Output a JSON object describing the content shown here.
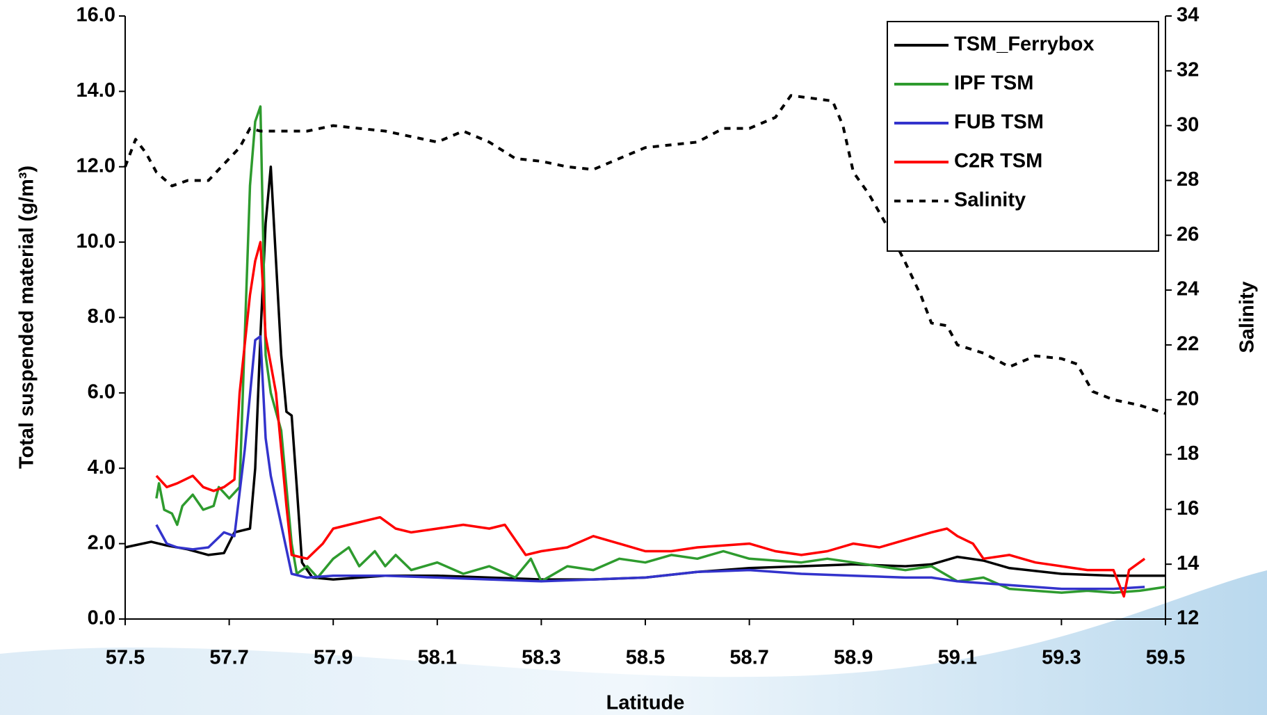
{
  "chart_data": {
    "type": "line",
    "y_label": "Total suspended material (g/m³)",
    "y2_label": "Salinity",
    "x_label": "Latitude",
    "xlim": [
      57.5,
      59.5
    ],
    "xticks": [
      57.5,
      57.7,
      57.9,
      58.1,
      58.3,
      58.5,
      58.7,
      58.9,
      59.1,
      59.3,
      59.5
    ],
    "ylim": [
      0,
      16
    ],
    "yticks": [
      {
        "value": 0,
        "label": "0.0"
      },
      {
        "value": 2,
        "label": "2.0"
      },
      {
        "value": 4,
        "label": "4.0"
      },
      {
        "value": 6,
        "label": "6.0"
      },
      {
        "value": 8,
        "label": "8.0"
      },
      {
        "value": 10,
        "label": "10.0"
      },
      {
        "value": 12,
        "label": "12.0"
      },
      {
        "value": 14,
        "label": "14.0"
      },
      {
        "value": 16,
        "label": "16.0"
      }
    ],
    "y2lim": [
      12,
      34
    ],
    "y2ticks": [
      12,
      14,
      16,
      18,
      20,
      22,
      24,
      26,
      28,
      30,
      32,
      34
    ],
    "legend": "upper right",
    "series": [
      {
        "name": "TSM_Ferrybox",
        "color": "#000000",
        "style": "solid",
        "x": [
          57.5,
          57.55,
          57.58,
          57.62,
          57.66,
          57.69,
          57.71,
          57.74,
          57.75,
          57.76,
          57.77,
          57.78,
          57.79,
          57.8,
          57.81,
          57.82,
          57.83,
          57.84,
          57.86,
          57.9,
          58.0,
          58.1,
          58.2,
          58.3,
          58.4,
          58.5,
          58.6,
          58.7,
          58.8,
          58.9,
          59.0,
          59.05,
          59.1,
          59.15,
          59.2,
          59.3,
          59.4,
          59.5
        ],
        "values": [
          1.9,
          2.05,
          1.95,
          1.85,
          1.7,
          1.75,
          2.3,
          2.4,
          4.0,
          7.5,
          10.5,
          12.0,
          9.5,
          7.0,
          5.5,
          5.4,
          3.5,
          1.5,
          1.1,
          1.05,
          1.15,
          1.15,
          1.1,
          1.05,
          1.05,
          1.1,
          1.25,
          1.35,
          1.4,
          1.45,
          1.4,
          1.45,
          1.65,
          1.55,
          1.35,
          1.2,
          1.15,
          1.15
        ]
      },
      {
        "name": "IPF TSM",
        "color": "#2e9b2e",
        "style": "solid",
        "x": [
          57.56,
          57.565,
          57.575,
          57.59,
          57.6,
          57.61,
          57.63,
          57.65,
          57.67,
          57.68,
          57.7,
          57.72,
          57.73,
          57.74,
          57.75,
          57.76,
          57.77,
          57.78,
          57.8,
          57.82,
          57.83,
          57.85,
          57.87,
          57.9,
          57.93,
          57.95,
          57.98,
          58.0,
          58.02,
          58.05,
          58.1,
          58.15,
          58.2,
          58.25,
          58.28,
          58.3,
          58.35,
          58.4,
          58.45,
          58.5,
          58.55,
          58.6,
          58.65,
          58.7,
          58.8,
          58.85,
          58.9,
          59.0,
          59.05,
          59.1,
          59.15,
          59.2,
          59.25,
          59.3,
          59.35,
          59.4,
          59.45,
          59.5
        ],
        "values": [
          3.2,
          3.6,
          2.9,
          2.8,
          2.5,
          3.0,
          3.3,
          2.9,
          3.0,
          3.5,
          3.2,
          3.5,
          7.5,
          11.5,
          13.2,
          13.6,
          7.0,
          6.0,
          5.0,
          2.0,
          1.2,
          1.4,
          1.1,
          1.6,
          1.9,
          1.4,
          1.8,
          1.4,
          1.7,
          1.3,
          1.5,
          1.2,
          1.4,
          1.1,
          1.6,
          1.0,
          1.4,
          1.3,
          1.6,
          1.5,
          1.7,
          1.6,
          1.8,
          1.6,
          1.5,
          1.6,
          1.5,
          1.3,
          1.4,
          1.0,
          1.1,
          0.8,
          0.75,
          0.7,
          0.75,
          0.7,
          0.75,
          0.85
        ]
      },
      {
        "name": "FUB TSM",
        "color": "#3333cc",
        "style": "solid",
        "x": [
          57.56,
          57.58,
          57.6,
          57.63,
          57.66,
          57.69,
          57.71,
          57.73,
          57.75,
          57.76,
          57.77,
          57.78,
          57.8,
          57.82,
          57.85,
          57.9,
          58.0,
          58.1,
          58.2,
          58.3,
          58.4,
          58.5,
          58.6,
          58.7,
          58.8,
          58.9,
          59.0,
          59.05,
          59.1,
          59.2,
          59.3,
          59.4,
          59.46
        ],
        "values": [
          2.5,
          2.0,
          1.9,
          1.85,
          1.9,
          2.3,
          2.2,
          4.5,
          7.4,
          7.5,
          4.8,
          3.8,
          2.5,
          1.2,
          1.1,
          1.15,
          1.15,
          1.1,
          1.05,
          1.0,
          1.05,
          1.1,
          1.25,
          1.3,
          1.2,
          1.15,
          1.1,
          1.1,
          1.0,
          0.9,
          0.8,
          0.8,
          0.85
        ]
      },
      {
        "name": "C2R TSM",
        "color": "#ff0000",
        "style": "solid",
        "x": [
          57.56,
          57.58,
          57.6,
          57.63,
          57.65,
          57.67,
          57.69,
          57.71,
          57.72,
          57.74,
          57.75,
          57.76,
          57.77,
          57.79,
          57.81,
          57.82,
          57.85,
          57.88,
          57.9,
          57.93,
          57.96,
          57.99,
          58.02,
          58.05,
          58.1,
          58.15,
          58.2,
          58.23,
          58.27,
          58.3,
          58.35,
          58.4,
          58.45,
          58.5,
          58.55,
          58.6,
          58.7,
          58.75,
          58.8,
          58.85,
          58.9,
          58.95,
          59.0,
          59.05,
          59.08,
          59.1,
          59.13,
          59.15,
          59.2,
          59.25,
          59.3,
          59.35,
          59.4,
          59.42,
          59.43,
          59.46
        ],
        "values": [
          3.8,
          3.5,
          3.6,
          3.8,
          3.5,
          3.4,
          3.5,
          3.7,
          6.0,
          8.6,
          9.5,
          10.0,
          7.5,
          6.0,
          3.0,
          1.7,
          1.6,
          2.0,
          2.4,
          2.5,
          2.6,
          2.7,
          2.4,
          2.3,
          2.4,
          2.5,
          2.4,
          2.5,
          1.7,
          1.8,
          1.9,
          2.2,
          2.0,
          1.8,
          1.8,
          1.9,
          2.0,
          1.8,
          1.7,
          1.8,
          2.0,
          1.9,
          2.1,
          2.3,
          2.4,
          2.2,
          2.0,
          1.6,
          1.7,
          1.5,
          1.4,
          1.3,
          1.3,
          0.6,
          1.3,
          1.6
        ]
      },
      {
        "name": "Salinity",
        "color": "#000000",
        "style": "dotted",
        "axis": "y2",
        "x": [
          57.5,
          57.52,
          57.54,
          57.56,
          57.59,
          57.62,
          57.66,
          57.69,
          57.72,
          57.74,
          57.76,
          57.8,
          57.85,
          57.9,
          57.95,
          58.0,
          58.05,
          58.1,
          58.15,
          58.2,
          58.25,
          58.3,
          58.35,
          58.4,
          58.45,
          58.5,
          58.55,
          58.6,
          58.65,
          58.7,
          58.75,
          58.78,
          58.82,
          58.86,
          58.88,
          58.9,
          58.93,
          58.96,
          59.0,
          59.03,
          59.05,
          59.08,
          59.1,
          59.15,
          59.2,
          59.25,
          59.3,
          59.33,
          59.36,
          59.4,
          59.45,
          59.5
        ],
        "values": [
          28.5,
          29.5,
          29.0,
          28.3,
          27.8,
          28.0,
          28.0,
          28.6,
          29.2,
          29.9,
          29.8,
          29.8,
          29.8,
          30.0,
          29.9,
          29.8,
          29.6,
          29.4,
          29.8,
          29.4,
          28.8,
          28.7,
          28.5,
          28.4,
          28.8,
          29.2,
          29.3,
          29.4,
          29.9,
          29.9,
          30.3,
          31.1,
          31.0,
          30.9,
          30.0,
          28.3,
          27.5,
          26.5,
          25.0,
          23.8,
          22.8,
          22.7,
          22.0,
          21.7,
          21.2,
          21.6,
          21.5,
          21.3,
          20.3,
          20.0,
          19.8,
          19.5
        ]
      }
    ]
  }
}
